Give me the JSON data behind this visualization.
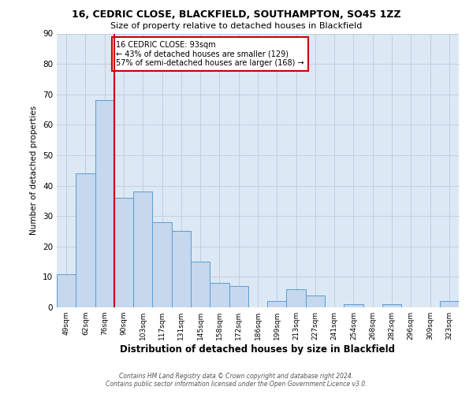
{
  "title1": "16, CEDRIC CLOSE, BLACKFIELD, SOUTHAMPTON, SO45 1ZZ",
  "title2": "Size of property relative to detached houses in Blackfield",
  "xlabel": "Distribution of detached houses by size in Blackfield",
  "ylabel": "Number of detached properties",
  "bar_labels": [
    "49sqm",
    "62sqm",
    "76sqm",
    "90sqm",
    "103sqm",
    "117sqm",
    "131sqm",
    "145sqm",
    "158sqm",
    "172sqm",
    "186sqm",
    "199sqm",
    "213sqm",
    "227sqm",
    "241sqm",
    "254sqm",
    "268sqm",
    "282sqm",
    "296sqm",
    "309sqm",
    "323sqm"
  ],
  "bar_values": [
    11,
    44,
    68,
    36,
    38,
    28,
    25,
    15,
    8,
    7,
    0,
    2,
    6,
    4,
    0,
    1,
    0,
    1,
    0,
    0,
    2
  ],
  "bar_color": "#c5d8ed",
  "bar_edge_color": "#5b9bd5",
  "vline_color": "#cc0000",
  "annotation_text": "16 CEDRIC CLOSE: 93sqm\n← 43% of detached houses are smaller (129)\n57% of semi-detached houses are larger (168) →",
  "annotation_box_color": "#ffffff",
  "annotation_box_edge": "#cc0000",
  "ylim": [
    0,
    90
  ],
  "yticks": [
    0,
    10,
    20,
    30,
    40,
    50,
    60,
    70,
    80,
    90
  ],
  "footer1": "Contains HM Land Registry data © Crown copyright and database right 2024.",
  "footer2": "Contains public sector information licensed under the Open Government Licence v3.0.",
  "grid_color": "#c0cfdf",
  "bg_color": "#dce9f5"
}
